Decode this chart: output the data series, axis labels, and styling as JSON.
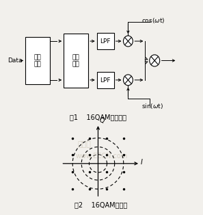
{
  "title1": "图1    16QAM原理框图",
  "title2": "图2    16QAM星座图",
  "watermark1": "中电网",
  "watermark2": "www.EECN.com",
  "bg_color": "#f2f0ec",
  "block_color": "#ffffff",
  "block_edge": "#000000",
  "text_color": "#000000",
  "watermark_color": "#c8c0b0",
  "r_inner": 0.35,
  "r_middle": 0.65,
  "r_outer": 1.0,
  "font_size_label": 6.5,
  "font_size_caption": 7.0,
  "font_size_watermark": 8
}
